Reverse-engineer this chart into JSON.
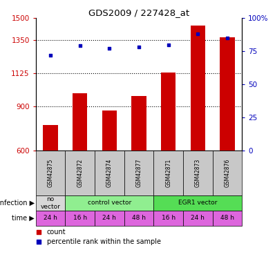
{
  "title": "GDS2009 / 227428_at",
  "samples": [
    "GSM42875",
    "GSM42872",
    "GSM42874",
    "GSM42877",
    "GSM42871",
    "GSM42873",
    "GSM42876"
  ],
  "counts": [
    770,
    990,
    870,
    970,
    1130,
    1450,
    1370
  ],
  "percentiles": [
    72,
    79,
    77,
    78,
    80,
    88,
    85
  ],
  "infection_groups": [
    {
      "label": "no\nvector",
      "start": 0,
      "end": 1,
      "color": "#d8d8d8"
    },
    {
      "label": "control vector",
      "start": 1,
      "end": 4,
      "color": "#90ee90"
    },
    {
      "label": "EGR1 vector",
      "start": 4,
      "end": 7,
      "color": "#55dd55"
    }
  ],
  "time_labels": [
    "24 h",
    "16 h",
    "24 h",
    "48 h",
    "16 h",
    "24 h",
    "48 h"
  ],
  "time_color": "#dd66dd",
  "bar_color": "#cc0000",
  "dot_color": "#0000bb",
  "ylim_left": [
    600,
    1500
  ],
  "yticks_left": [
    600,
    900,
    1125,
    1350,
    1500
  ],
  "ylim_right": [
    0,
    100
  ],
  "yticks_right": [
    0,
    25,
    50,
    75,
    100
  ],
  "yticklabels_right": [
    "0",
    "25",
    "50",
    "75",
    "100%"
  ],
  "left_tick_color": "#cc0000",
  "right_tick_color": "#0000bb",
  "grid_lines": [
    900,
    1125,
    1350
  ],
  "sample_bg_color": "#c8c8c8",
  "infection_label": "infection",
  "time_label": "time"
}
